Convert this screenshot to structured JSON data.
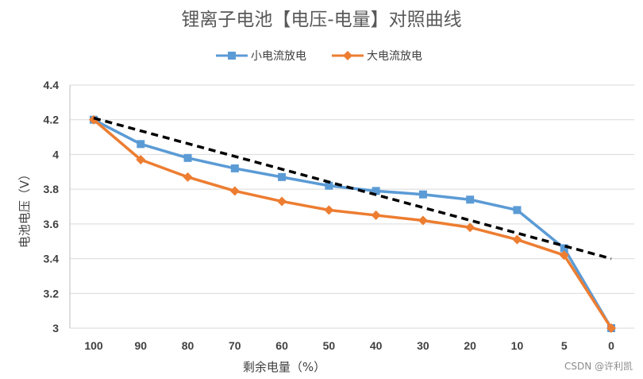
{
  "chart_data": {
    "type": "line",
    "title": "锂离子电池【电压-电量】对照曲线",
    "xlabel": "剩余电量（%）",
    "ylabel": "电池电压（V）",
    "categories": [
      "100",
      "90",
      "80",
      "70",
      "60",
      "50",
      "40",
      "30",
      "20",
      "10",
      "5",
      "0"
    ],
    "ylim": [
      3,
      4.4
    ],
    "yticks": [
      "3",
      "3.2",
      "3.4",
      "3.6",
      "3.8",
      "4",
      "4.2",
      "4.4"
    ],
    "ytick_values": [
      3,
      3.2,
      3.4,
      3.6,
      3.8,
      4,
      4.2,
      4.4
    ],
    "grid": true,
    "legend_position": "top-center",
    "series": [
      {
        "name": "小电流放电",
        "color": "#5B9BD5",
        "marker": "square",
        "values": [
          4.2,
          4.06,
          3.98,
          3.92,
          3.87,
          3.82,
          3.79,
          3.77,
          3.74,
          3.68,
          3.46,
          3.0
        ]
      },
      {
        "name": "大电流放电",
        "color": "#ED7D31",
        "marker": "diamond",
        "values": [
          4.2,
          3.97,
          3.87,
          3.79,
          3.73,
          3.68,
          3.65,
          3.62,
          3.58,
          3.51,
          3.42,
          3.0
        ]
      }
    ],
    "trendline": {
      "color": "#000000",
      "style": "dashed",
      "start": [
        0,
        4.21
      ],
      "end": [
        11,
        3.4
      ]
    }
  },
  "watermark": "CSDN @许利凯"
}
